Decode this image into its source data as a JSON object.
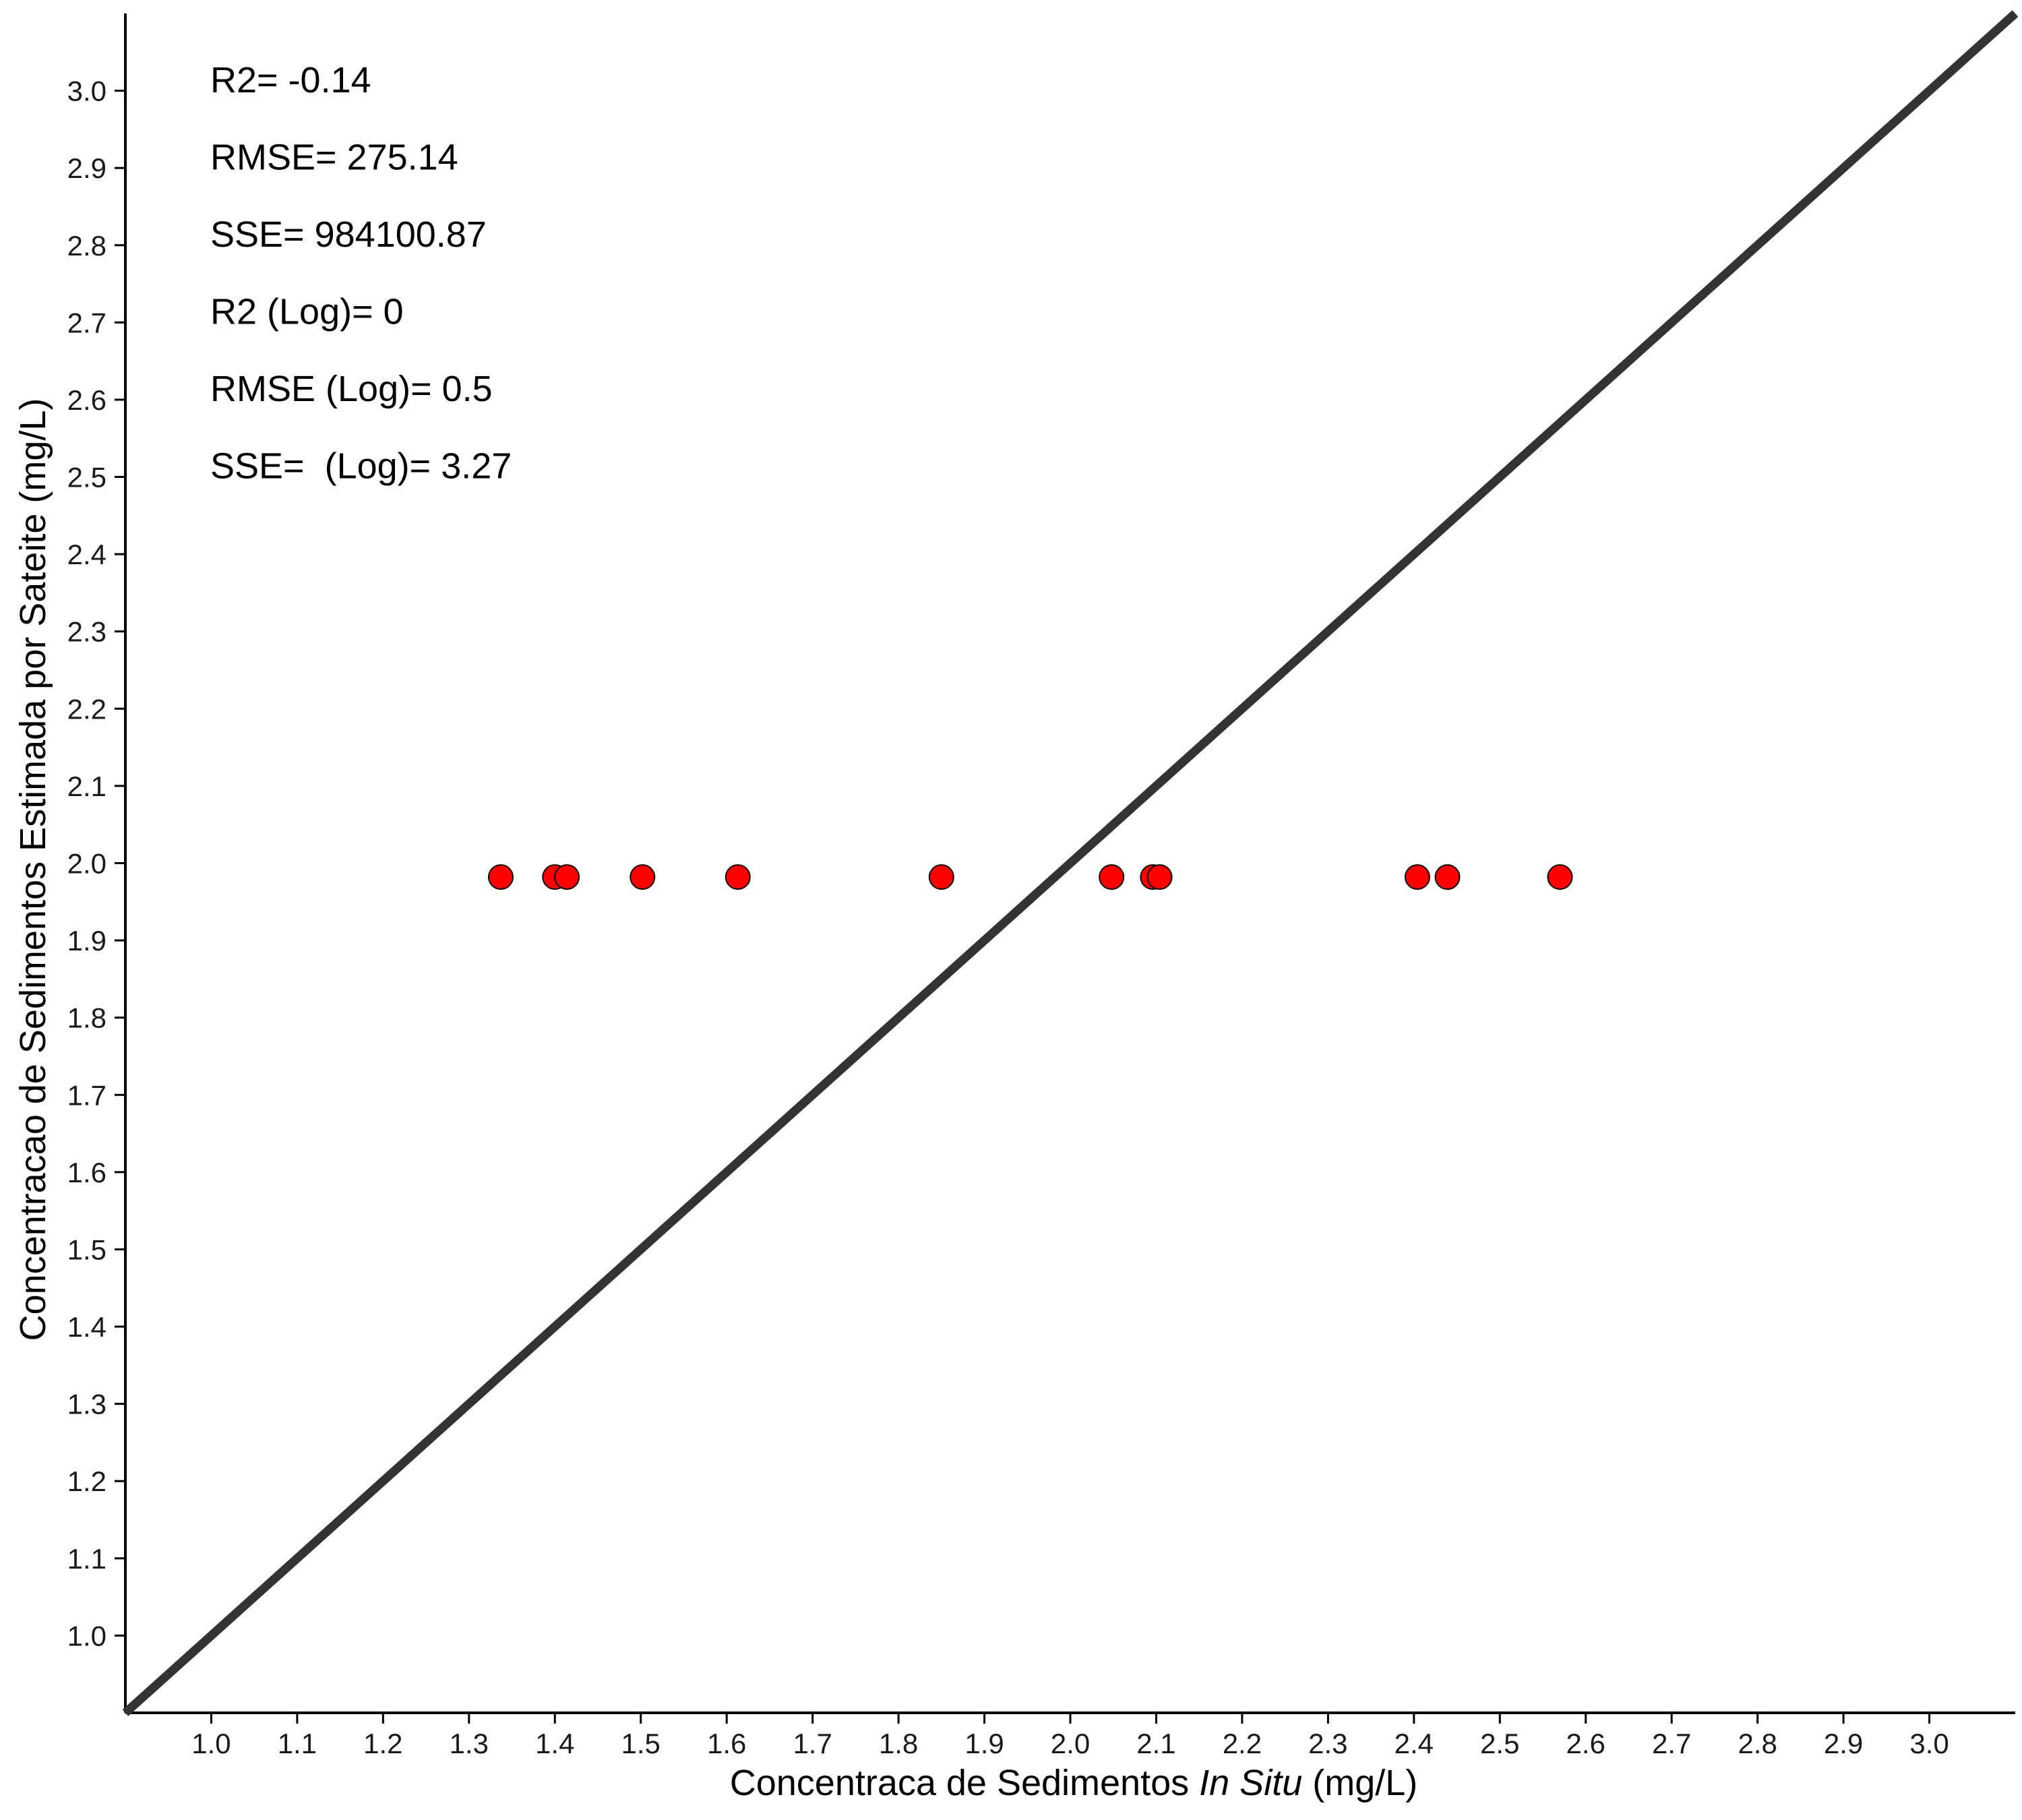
{
  "chart_data": {
    "type": "scatter",
    "title": "",
    "xlabel_parts": [
      "Concentraca de Sedimentos ",
      "In Situ",
      " (mg/L)"
    ],
    "ylabel": "Concentracao de Sedimentos Estimada por Sateite (mg/L)",
    "xlim": [
      0.9,
      3.1
    ],
    "ylim": [
      0.9,
      3.1
    ],
    "x_ticks": [
      "1.0",
      "1.1",
      "1.2",
      "1.3",
      "1.4",
      "1.5",
      "1.6",
      "1.7",
      "1.8",
      "1.9",
      "2.0",
      "2.1",
      "2.2",
      "2.3",
      "2.4",
      "2.5",
      "2.6",
      "2.7",
      "2.8",
      "2.9",
      "3.0"
    ],
    "y_ticks": [
      "1.0",
      "1.1",
      "1.2",
      "1.3",
      "1.4",
      "1.5",
      "1.6",
      "1.7",
      "1.8",
      "1.9",
      "2.0",
      "2.1",
      "2.2",
      "2.3",
      "2.4",
      "2.5",
      "2.6",
      "2.7",
      "2.8",
      "2.9",
      "3.0"
    ],
    "grid": false,
    "reference_line": {
      "x": [
        0.9,
        3.1
      ],
      "y": [
        0.9,
        3.1
      ]
    },
    "points": {
      "x": [
        1.337,
        1.4,
        1.414,
        1.502,
        1.613,
        1.85,
        2.048,
        2.096,
        2.104,
        2.404,
        2.439,
        2.57
      ],
      "y": [
        1.982,
        1.982,
        1.982,
        1.982,
        1.982,
        1.982,
        1.982,
        1.982,
        1.982,
        1.982,
        1.982,
        1.982
      ]
    },
    "annotations": [
      "R2= -0.14",
      "RMSE= 275.14",
      "SSE= 984100.87",
      "R2 (Log)= 0",
      "RMSE (Log)= 0.5",
      "SSE=  (Log)= 3.27"
    ],
    "colors": {
      "point_fill": "#ff0000",
      "point_stroke": "#000000",
      "reference_line": "#333333",
      "axis": "#000000"
    }
  }
}
